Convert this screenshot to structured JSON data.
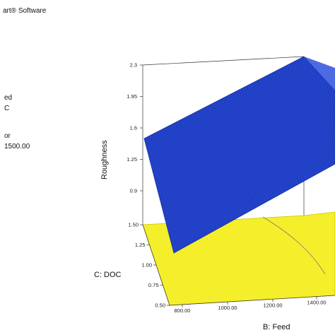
{
  "side_panel": {
    "software": "art® Software",
    "line_1": "ed",
    "line_2": "C",
    "line_3": "or",
    "line_4": "1500.00"
  },
  "chart_data": {
    "type": "surface3d",
    "zlabel": "Roughness",
    "xlabel": "B: Feed",
    "ylabel": "C: DOC",
    "z_ticks": [
      "0.9",
      "1.25",
      "1.6",
      "1.95",
      "2.3"
    ],
    "z_range": [
      0.9,
      2.3
    ],
    "x_ticks": [
      "800.00",
      "1000.00",
      "1200.00",
      "1400.00"
    ],
    "y_ticks": [
      "0.50",
      "0.75",
      "1.00",
      "1.25",
      "1.50"
    ],
    "surface": [
      {
        "feed": 800,
        "doc": 0.5,
        "roughness": 0.65
      },
      {
        "feed": 800,
        "doc": 1.5,
        "roughness": 1.55
      },
      {
        "feed": 1400,
        "doc": 0.5,
        "roughness": 1.35
      },
      {
        "feed": 1400,
        "doc": 1.5,
        "roughness": 2.25
      }
    ],
    "colors": {
      "surface": "#1f3fc6",
      "floor": "#f4ef2a",
      "floor_edge": "#c9c400",
      "mesh": "#5f7ae8"
    }
  }
}
